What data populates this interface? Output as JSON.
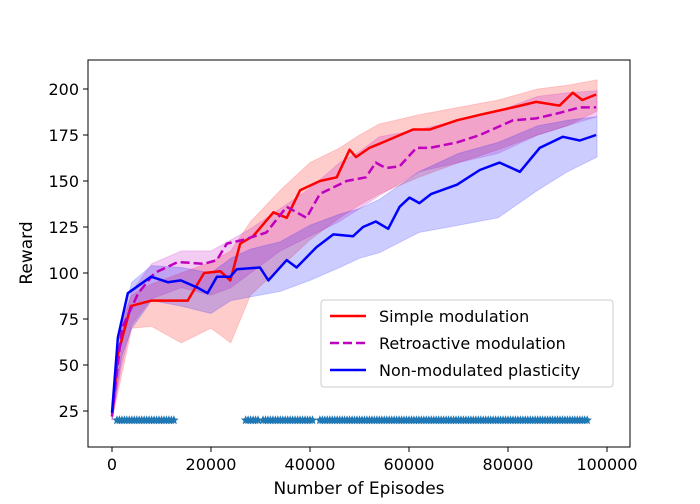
{
  "chart_data": {
    "type": "line",
    "title": "",
    "xlabel": "Number of Episodes",
    "ylabel": "Reward",
    "xlim": [
      -5000,
      104000
    ],
    "ylim": [
      6,
      215
    ],
    "xticks": [
      0,
      20000,
      40000,
      60000,
      80000,
      100000
    ],
    "xtick_labels": [
      "0",
      "20000",
      "40000",
      "60000",
      "80000",
      "100000"
    ],
    "yticks": [
      25,
      50,
      75,
      100,
      125,
      150,
      175,
      200
    ],
    "ytick_labels": [
      "25",
      "50",
      "75",
      "100",
      "125",
      "150",
      "175",
      "200"
    ],
    "grid": false,
    "legend_position": "lower-right",
    "series": [
      {
        "name": "Simple modulation",
        "color": "#ff0000",
        "style": "solid",
        "x": [
          0,
          1200,
          3800,
          8000,
          15300,
          18600,
          21900,
          23900,
          25900,
          28500,
          32600,
          35300,
          38000,
          42000,
          45400,
          48000,
          49300,
          52000,
          54700,
          60800,
          64200,
          69700,
          74300,
          81000,
          85700,
          90400,
          93100,
          95000,
          97800
        ],
        "y": [
          22,
          56,
          82,
          85,
          85,
          100,
          101,
          96,
          116,
          120,
          133,
          130,
          145,
          150,
          152,
          167,
          163,
          168,
          171,
          178,
          178,
          183,
          186,
          190,
          193,
          191,
          198,
          194,
          197
        ],
        "band": {
          "x": [
            0,
            2000,
            4000,
            8000,
            14000,
            20000,
            24000,
            28000,
            34000,
            40000,
            46000,
            50000,
            54000,
            62000,
            70000,
            78000,
            86000,
            92000,
            98000
          ],
          "lower": [
            20,
            45,
            70,
            71,
            62,
            70,
            62,
            88,
            103,
            118,
            130,
            137,
            143,
            152,
            160,
            167,
            175,
            180,
            188
          ],
          "upper": [
            24,
            75,
            88,
            94,
            100,
            106,
            112,
            128,
            145,
            160,
            168,
            175,
            181,
            186,
            190,
            194,
            200,
            202,
            205
          ]
        }
      },
      {
        "name": "Retroactive modulation",
        "color": "#bf00bf",
        "style": "dashed",
        "x": [
          0,
          2000,
          5300,
          8600,
          13300,
          18600,
          21200,
          23200,
          26500,
          31200,
          35300,
          39300,
          42000,
          47400,
          51300,
          53300,
          55300,
          58100,
          61500,
          64200,
          69700,
          74300,
          81000,
          85700,
          90400,
          94500,
          97800
        ],
        "y": [
          22,
          70,
          89,
          100,
          106,
          105,
          107,
          116,
          118,
          122,
          136,
          130,
          143,
          150,
          152,
          160,
          157,
          158,
          168,
          168,
          171,
          175,
          183,
          184,
          187,
          190,
          190
        ],
        "band": {
          "x": [
            0,
            2000,
            4000,
            8000,
            14000,
            20000,
            24000,
            28000,
            34000,
            40000,
            46000,
            50000,
            54000,
            62000,
            70000,
            78000,
            86000,
            92000,
            98000
          ],
          "lower": [
            20,
            50,
            72,
            86,
            92,
            88,
            92,
            100,
            112,
            120,
            128,
            135,
            142,
            155,
            160,
            165,
            175,
            180,
            185
          ],
          "upper": [
            24,
            70,
            90,
            105,
            112,
            112,
            118,
            124,
            135,
            146,
            160,
            166,
            174,
            178,
            183,
            188,
            196,
            198,
            199
          ]
        }
      },
      {
        "name": "Non-modulated plasticity",
        "color": "#0000ff",
        "style": "solid",
        "x": [
          0,
          1200,
          3200,
          7900,
          11300,
          13900,
          17300,
          19300,
          21200,
          23900,
          25200,
          29900,
          31600,
          35300,
          37300,
          41300,
          44700,
          48700,
          50700,
          53300,
          55800,
          58100,
          60100,
          62100,
          64500,
          69700,
          74300,
          78300,
          82400,
          86400,
          91100,
          94500,
          97800
        ],
        "y": [
          24,
          65,
          89,
          98,
          95,
          96,
          92,
          89,
          98,
          98,
          102,
          103,
          96,
          107,
          103,
          114,
          121,
          120,
          125,
          128,
          124,
          136,
          141,
          138,
          143,
          148,
          156,
          160,
          155,
          168,
          174,
          172,
          175
        ],
        "band": {
          "x": [
            0,
            2000,
            4000,
            8000,
            14000,
            20000,
            24000,
            28000,
            34000,
            40000,
            46000,
            50000,
            54000,
            62000,
            70000,
            78000,
            86000,
            92000,
            98000
          ],
          "lower": [
            20,
            55,
            70,
            85,
            82,
            78,
            85,
            87,
            90,
            96,
            103,
            108,
            111,
            122,
            126,
            130,
            145,
            155,
            163
          ],
          "upper": [
            24,
            75,
            95,
            104,
            103,
            100,
            108,
            113,
            117,
            126,
            132,
            135,
            140,
            155,
            165,
            171,
            180,
            183,
            185
          ]
        }
      }
    ],
    "markers": {
      "symbol": "star",
      "color": "#1f77b4",
      "y": 20,
      "x_ranges": [
        [
          1000,
          12500
        ],
        [
          27000,
          29500
        ],
        [
          30500,
          40500
        ],
        [
          42000,
          96000
        ]
      ],
      "spacing": 500
    }
  }
}
